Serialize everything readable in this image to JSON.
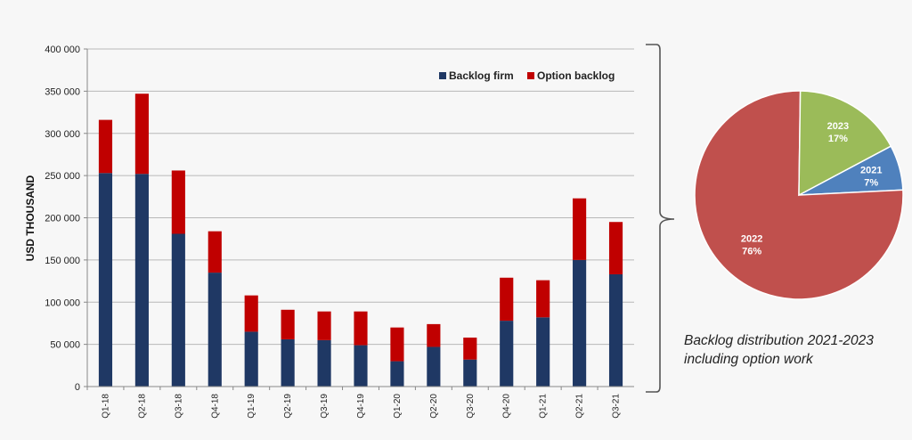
{
  "chart_data": [
    {
      "type": "bar",
      "stacked": true,
      "ylabel": "USD THOUSAND",
      "ylim": [
        0,
        400000
      ],
      "ytick_labels": [
        "0",
        "50 000",
        "100 000",
        "150 000",
        "200 000",
        "250 000",
        "300 000",
        "350 000",
        "400 000"
      ],
      "grid": true,
      "legend_position": "top-right",
      "categories": [
        "Q1-18",
        "Q2-18",
        "Q3-18",
        "Q4-18",
        "Q1-19",
        "Q2-19",
        "Q3-19",
        "Q4-19",
        "Q1-20",
        "Q2-20",
        "Q3-20",
        "Q4-20",
        "Q1-21",
        "Q2-21",
        "Q3-21"
      ],
      "series": [
        {
          "name": "Backlog firm",
          "color": "#1f3864",
          "values": [
            253000,
            252000,
            181000,
            135000,
            65000,
            56000,
            55000,
            49000,
            30000,
            47000,
            32000,
            78000,
            82000,
            150000,
            133000
          ]
        },
        {
          "name": "Option backlog",
          "color": "#c00000",
          "values": [
            63000,
            95000,
            75000,
            49000,
            43000,
            35000,
            34000,
            40000,
            40000,
            27000,
            26000,
            51000,
            44000,
            73000,
            62000
          ]
        }
      ]
    },
    {
      "type": "pie",
      "slices": [
        {
          "label": "2021",
          "value": 7,
          "display": "7%",
          "color": "#4f81bd"
        },
        {
          "label": "2022",
          "value": 76,
          "display": "76%",
          "color": "#c0504d"
        },
        {
          "label": "2023",
          "value": 17,
          "display": "17%",
          "color": "#9bbb59"
        }
      ]
    }
  ],
  "caption": {
    "line1": "Backlog distribution 2021-2023",
    "line2": "including option work"
  }
}
